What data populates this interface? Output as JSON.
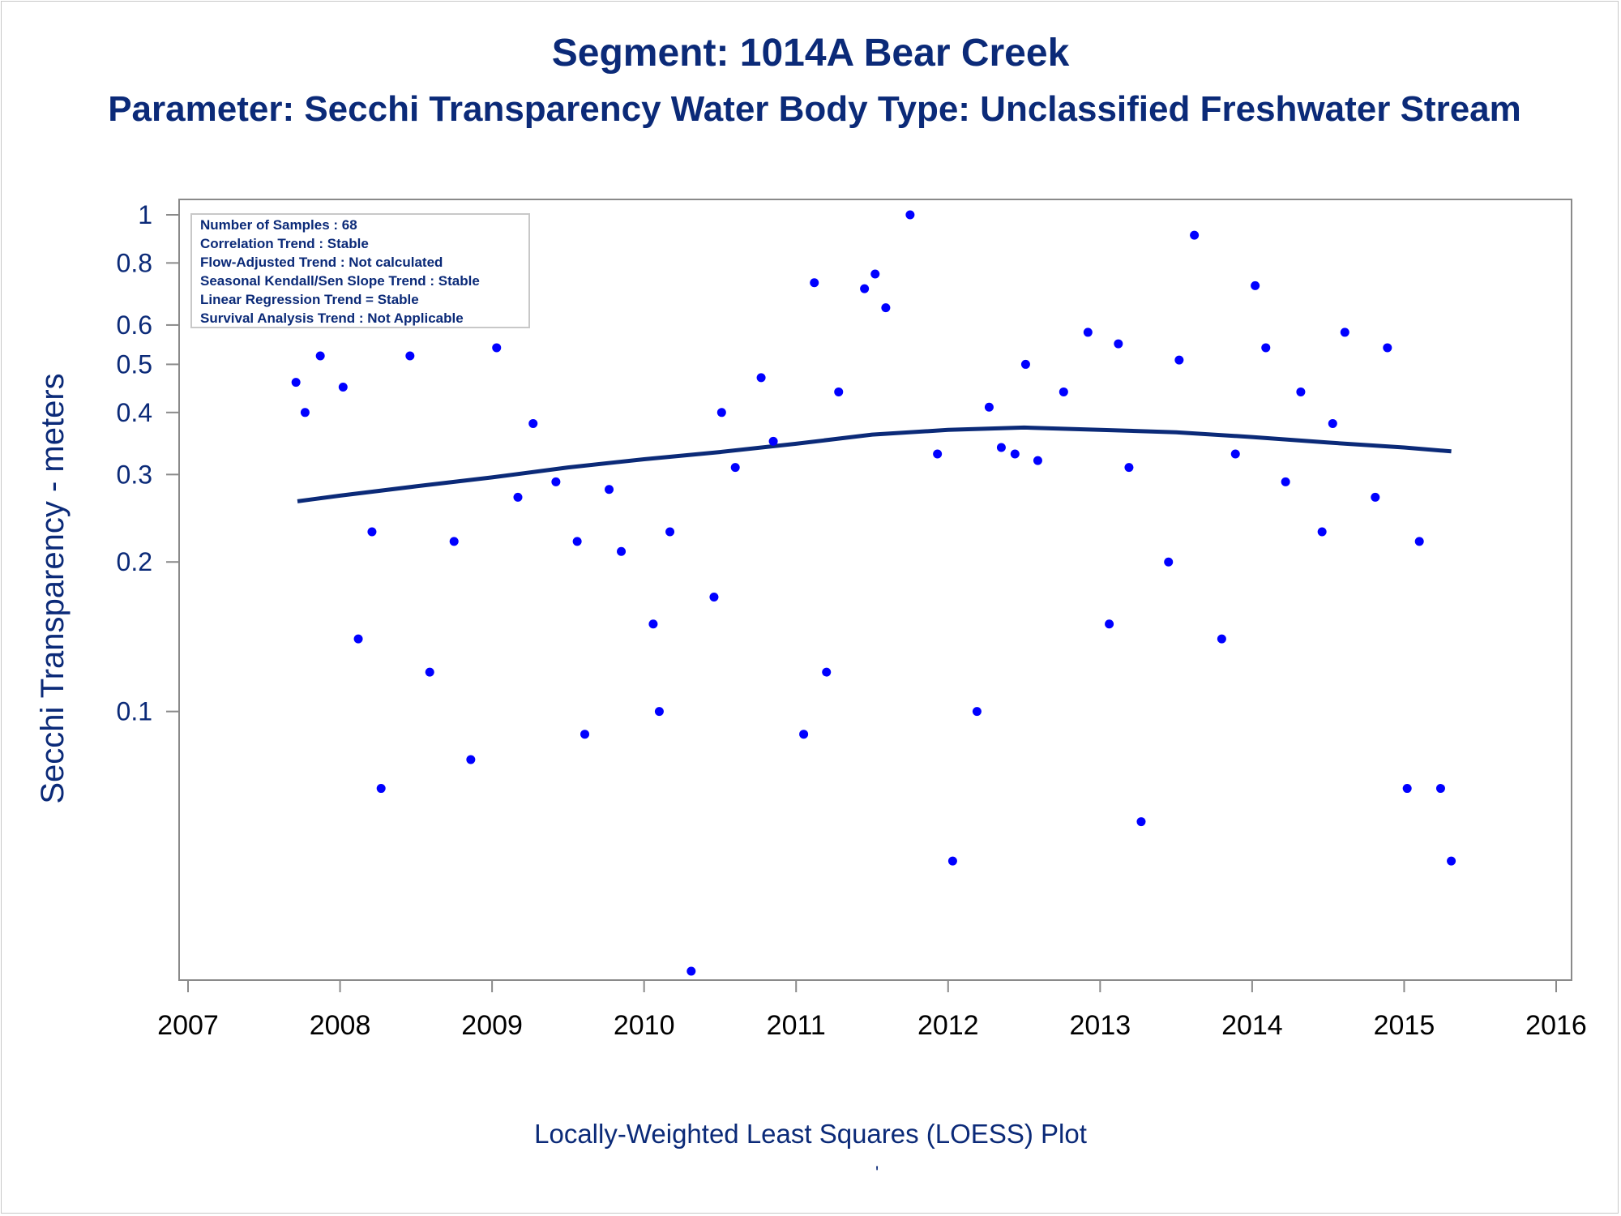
{
  "title": "Segment: 1014A  Bear Creek",
  "subtitle": "Parameter: Secchi Transparency   Water Body Type: Unclassified Freshwater Stream",
  "footnote": "Locally-Weighted Least Squares (LOESS) Plot",
  "footnote_mark": "'",
  "colors": {
    "text": "#0b2a78",
    "points": "#0000ff",
    "curve": "#0b2a78",
    "axis": "#8a8a8a"
  },
  "chart_data": {
    "type": "scatter",
    "ylabel": "Secchi Transparency - meters",
    "xlabel": "",
    "x_axis": {
      "type": "time",
      "range": [
        2007,
        2016
      ],
      "ticks": [
        "2007",
        "2008",
        "2009",
        "2010",
        "2011",
        "2012",
        "2013",
        "2014",
        "2015",
        "2016"
      ]
    },
    "y_axis": {
      "scale": "log",
      "range": [
        0.028,
        1.05
      ],
      "ticks": [
        "0.1",
        "0.2",
        "0.3",
        "0.4",
        "0.5",
        "0.6",
        "0.8",
        "1"
      ]
    },
    "grid": false,
    "legend": "none",
    "info_box": [
      "Number of Samples : 68",
      "Correlation Trend : Stable",
      "Flow-Adjusted Trend : Not calculated",
      "Seasonal Kendall/Sen Slope Trend : Stable",
      "Linear Regression Trend = Stable",
      "Survival Analysis Trend : Not Applicable"
    ],
    "series": [
      {
        "type": "scatter",
        "points": [
          {
            "x": 2007.71,
            "y": 0.46
          },
          {
            "x": 2007.77,
            "y": 0.4
          },
          {
            "x": 2007.87,
            "y": 0.52
          },
          {
            "x": 2008.02,
            "y": 0.45
          },
          {
            "x": 2008.12,
            "y": 0.14
          },
          {
            "x": 2008.21,
            "y": 0.23
          },
          {
            "x": 2008.27,
            "y": 0.07
          },
          {
            "x": 2008.46,
            "y": 0.52
          },
          {
            "x": 2008.59,
            "y": 0.12
          },
          {
            "x": 2008.75,
            "y": 0.22
          },
          {
            "x": 2008.86,
            "y": 0.08
          },
          {
            "x": 2009.03,
            "y": 0.54
          },
          {
            "x": 2009.17,
            "y": 0.27
          },
          {
            "x": 2009.27,
            "y": 0.38
          },
          {
            "x": 2009.42,
            "y": 0.29
          },
          {
            "x": 2009.56,
            "y": 0.22
          },
          {
            "x": 2009.61,
            "y": 0.09
          },
          {
            "x": 2009.77,
            "y": 0.28
          },
          {
            "x": 2009.85,
            "y": 0.21
          },
          {
            "x": 2010.06,
            "y": 0.15
          },
          {
            "x": 2010.1,
            "y": 0.1
          },
          {
            "x": 2010.17,
            "y": 0.23
          },
          {
            "x": 2010.31,
            "y": 0.03
          },
          {
            "x": 2010.46,
            "y": 0.17
          },
          {
            "x": 2010.51,
            "y": 0.4
          },
          {
            "x": 2010.6,
            "y": 0.31
          },
          {
            "x": 2010.77,
            "y": 0.47
          },
          {
            "x": 2010.85,
            "y": 0.35
          },
          {
            "x": 2011.05,
            "y": 0.09
          },
          {
            "x": 2011.12,
            "y": 0.73
          },
          {
            "x": 2011.2,
            "y": 0.12
          },
          {
            "x": 2011.28,
            "y": 0.44
          },
          {
            "x": 2011.45,
            "y": 0.71
          },
          {
            "x": 2011.52,
            "y": 0.76
          },
          {
            "x": 2011.59,
            "y": 0.65
          },
          {
            "x": 2011.75,
            "y": 1.0
          },
          {
            "x": 2011.93,
            "y": 0.33
          },
          {
            "x": 2012.03,
            "y": 0.05
          },
          {
            "x": 2012.19,
            "y": 0.1
          },
          {
            "x": 2012.27,
            "y": 0.41
          },
          {
            "x": 2012.35,
            "y": 0.34
          },
          {
            "x": 2012.44,
            "y": 0.33
          },
          {
            "x": 2012.51,
            "y": 0.5
          },
          {
            "x": 2012.59,
            "y": 0.32
          },
          {
            "x": 2012.76,
            "y": 0.44
          },
          {
            "x": 2012.92,
            "y": 0.58
          },
          {
            "x": 2013.06,
            "y": 0.15
          },
          {
            "x": 2013.12,
            "y": 0.55
          },
          {
            "x": 2013.19,
            "y": 0.31
          },
          {
            "x": 2013.27,
            "y": 0.06
          },
          {
            "x": 2013.45,
            "y": 0.2
          },
          {
            "x": 2013.52,
            "y": 0.51
          },
          {
            "x": 2013.62,
            "y": 0.91
          },
          {
            "x": 2013.8,
            "y": 0.14
          },
          {
            "x": 2013.89,
            "y": 0.33
          },
          {
            "x": 2014.02,
            "y": 0.72
          },
          {
            "x": 2014.09,
            "y": 0.54
          },
          {
            "x": 2014.22,
            "y": 0.29
          },
          {
            "x": 2014.32,
            "y": 0.44
          },
          {
            "x": 2014.46,
            "y": 0.23
          },
          {
            "x": 2014.53,
            "y": 0.38
          },
          {
            "x": 2014.61,
            "y": 0.58
          },
          {
            "x": 2014.81,
            "y": 0.27
          },
          {
            "x": 2014.89,
            "y": 0.54
          },
          {
            "x": 2015.02,
            "y": 0.07
          },
          {
            "x": 2015.1,
            "y": 0.22
          },
          {
            "x": 2015.24,
            "y": 0.07
          },
          {
            "x": 2015.31,
            "y": 0.05
          }
        ]
      },
      {
        "type": "line",
        "points": [
          {
            "x": 2007.72,
            "y": 0.265
          },
          {
            "x": 2008.0,
            "y": 0.272
          },
          {
            "x": 2008.5,
            "y": 0.284
          },
          {
            "x": 2009.0,
            "y": 0.296
          },
          {
            "x": 2009.5,
            "y": 0.31
          },
          {
            "x": 2010.0,
            "y": 0.322
          },
          {
            "x": 2010.5,
            "y": 0.333
          },
          {
            "x": 2011.0,
            "y": 0.346
          },
          {
            "x": 2011.5,
            "y": 0.361
          },
          {
            "x": 2012.0,
            "y": 0.369
          },
          {
            "x": 2012.5,
            "y": 0.373
          },
          {
            "x": 2013.0,
            "y": 0.369
          },
          {
            "x": 2013.5,
            "y": 0.365
          },
          {
            "x": 2014.0,
            "y": 0.357
          },
          {
            "x": 2014.5,
            "y": 0.348
          },
          {
            "x": 2015.0,
            "y": 0.34
          },
          {
            "x": 2015.31,
            "y": 0.334
          }
        ]
      }
    ]
  }
}
